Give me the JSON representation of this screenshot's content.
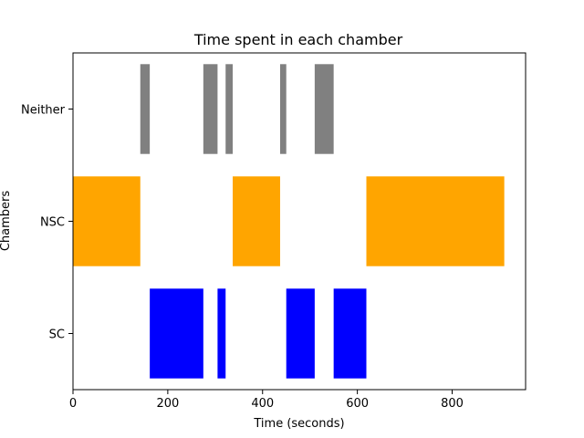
{
  "chart_data": {
    "type": "broken_barh",
    "title": "Time spent in each chamber",
    "xlabel": "Time (seconds)",
    "ylabel": "Chambers",
    "xlim": [
      0,
      955
    ],
    "x_ticks": [
      0,
      200,
      400,
      600,
      800
    ],
    "categories": [
      "SC",
      "NSC",
      "Neither"
    ],
    "grid": false,
    "legend": "none",
    "series": [
      {
        "category": "SC",
        "color": "#0000ff",
        "intervals": [
          [
            162,
            275
          ],
          [
            305,
            322
          ],
          [
            450,
            510
          ],
          [
            550,
            619
          ]
        ]
      },
      {
        "category": "NSC",
        "color": "#ffa500",
        "intervals": [
          [
            0,
            142
          ],
          [
            337,
            437
          ],
          [
            619,
            910
          ]
        ]
      },
      {
        "category": "Neither",
        "color": "#808080",
        "intervals": [
          [
            142,
            162
          ],
          [
            275,
            305
          ],
          [
            322,
            337
          ],
          [
            437,
            450
          ],
          [
            510,
            550
          ]
        ]
      }
    ]
  }
}
